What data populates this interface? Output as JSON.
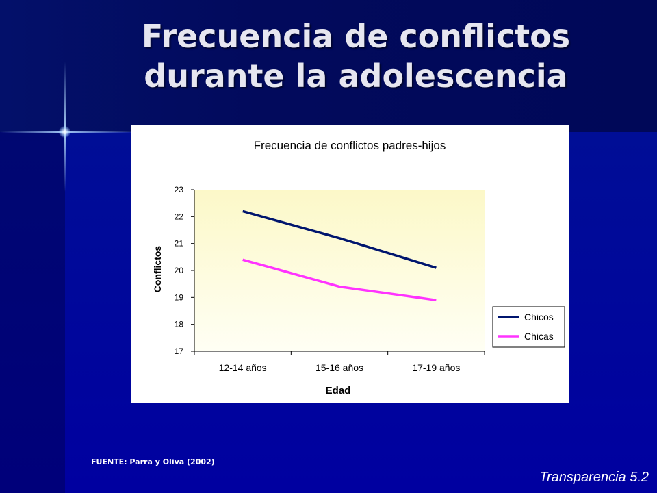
{
  "slide": {
    "title_line1": "Frecuencia de conflictos",
    "title_line2": "durante la adolescencia",
    "source": "FUENTE: Parra y Oliva (2002)",
    "footer": "Transparencia 5.2"
  },
  "colors": {
    "chicos": "#00156e",
    "chicas": "#ff33ff",
    "plot_bg_top": "#fcf8c8",
    "plot_bg_bottom": "#fffff4"
  },
  "chart_data": {
    "type": "line",
    "title": "Frecuencia de conflictos padres-hijos",
    "xlabel": "Edad",
    "ylabel": "Conflictos",
    "categories": [
      "12-14 años",
      "15-16 años",
      "17-19 años"
    ],
    "ylim": [
      17,
      23
    ],
    "yticks": [
      "17",
      "18",
      "19",
      "20",
      "21",
      "22",
      "23"
    ],
    "series": [
      {
        "name": "Chicos",
        "values": [
          22.2,
          21.2,
          20.1
        ]
      },
      {
        "name": "Chicas",
        "values": [
          20.4,
          19.4,
          18.9
        ]
      }
    ],
    "legend": "right",
    "grid": false
  }
}
